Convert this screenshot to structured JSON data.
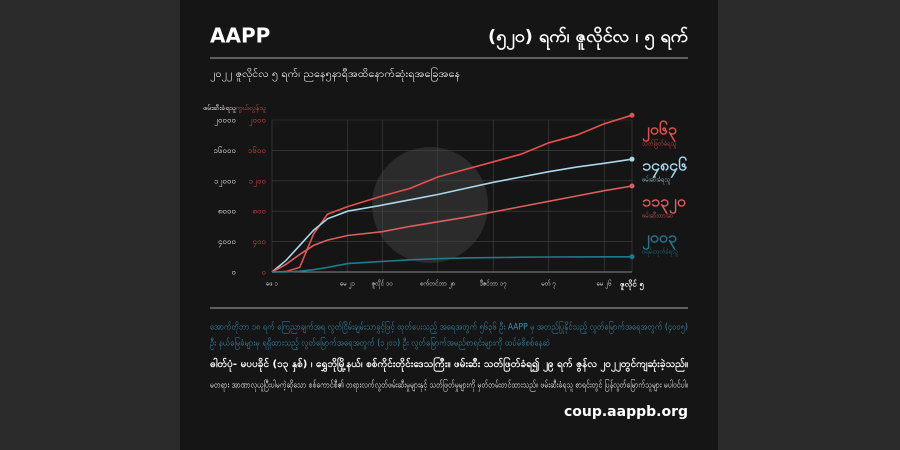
{
  "header": {
    "brand": "AAPP",
    "date": "(၅၂၀) ရက်၊ ဇူလိုင်လ ၊ ၅ ရက်",
    "subtitle": "၂၀၂၂ ဇူလိုင်လ ၅ ရက်၊ ညနေ၅နာရီအထိနောက်ဆုံးရအခြေအနေ"
  },
  "chart_data": {
    "type": "line",
    "y_label": "ဖမ်းဆီးခံရသူ",
    "y2_label": "ကွယ်လွန်သူ",
    "x": [
      0,
      20,
      40,
      60,
      80,
      109,
      159,
      199,
      239,
      279,
      319,
      359,
      399,
      439,
      479,
      519
    ],
    "xlim": [
      0,
      519
    ],
    "xticks": [
      {
        "value": 0,
        "label": "ဖေ ၁"
      },
      {
        "value": 109,
        "label": "မေ ၂၁"
      },
      {
        "value": 159,
        "label": "ဇူလိုင် ၁၀"
      },
      {
        "value": 239,
        "label": "စက်တင်ဘာ ၂၈"
      },
      {
        "value": 319,
        "label": "ဒီဇင်ဘာ ၁၇"
      },
      {
        "value": 399,
        "label": "မတ် ၇"
      },
      {
        "value": 479,
        "label": "မေ ၂၆"
      },
      {
        "value": 519,
        "label": "ဇူလိုင် ၅"
      }
    ],
    "ylim": [
      0,
      20000
    ],
    "yticks": [
      {
        "value": 0,
        "label": "၀"
      },
      {
        "value": 4000,
        "label": "၄၀၀၀"
      },
      {
        "value": 8000,
        "label": "၈၀၀၀"
      },
      {
        "value": 12000,
        "label": "၁၂၀၀၀"
      },
      {
        "value": 16000,
        "label": "၁၆၀၀၀"
      },
      {
        "value": 20000,
        "label": "၂၀၀၀၀"
      }
    ],
    "y2lim": [
      0,
      2000
    ],
    "y2ticks": [
      {
        "value": 0,
        "label": "၀"
      },
      {
        "value": 400,
        "label": "၄၀၀"
      },
      {
        "value": 800,
        "label": "၈၀၀"
      },
      {
        "value": 1200,
        "label": "၁၂၀၀"
      },
      {
        "value": 1600,
        "label": "၁၆၀၀"
      },
      {
        "value": 2000,
        "label": "၂၀၀၀"
      }
    ],
    "grid": true,
    "series": [
      {
        "name": "သတ်ဖြတ်ခံရသူ",
        "color": "#e8504c",
        "axis": "y2",
        "values": [
          0,
          5,
          60,
          500,
          760,
          860,
          1000,
          1100,
          1250,
          1350,
          1450,
          1550,
          1700,
          1800,
          1950,
          2063
        ],
        "value_labels": [
          null,
          null,
          null,
          null,
          null,
          null,
          null,
          null,
          null,
          null,
          null,
          null,
          null,
          null,
          null,
          "၂၀၆၃"
        ]
      },
      {
        "name": "ဖမ်းဆီးခံရသူ",
        "color": "#a8d8ea",
        "values": [
          0,
          1500,
          3500,
          5500,
          7000,
          8000,
          8800,
          9500,
          10200,
          11000,
          11800,
          12500,
          13200,
          13800,
          14300,
          14846
        ],
        "value_labels": [
          null,
          null,
          null,
          null,
          null,
          null,
          null,
          null,
          null,
          null,
          null,
          null,
          null,
          null,
          null,
          "၁၄၈၄၆"
        ]
      },
      {
        "name": "ဖမ်းဆီးထားဆဲ",
        "color": "#d9605c",
        "values": [
          0,
          1000,
          2300,
          3500,
          4200,
          4800,
          5300,
          6000,
          6600,
          7200,
          7900,
          8600,
          9300,
          10000,
          10700,
          11320
        ],
        "value_labels": [
          null,
          null,
          null,
          null,
          null,
          null,
          null,
          null,
          null,
          null,
          null,
          null,
          null,
          null,
          null,
          "၁၁၃၂၀"
        ]
      },
      {
        "name": "ဝရမ်းထုတ်ခံရသူ",
        "color": "#1f7a8c",
        "values": [
          0,
          0,
          100,
          300,
          600,
          1100,
          1400,
          1600,
          1750,
          1850,
          1900,
          1950,
          1980,
          1990,
          2000,
          2003
        ],
        "value_labels": [
          null,
          null,
          null,
          null,
          null,
          null,
          null,
          null,
          null,
          null,
          null,
          null,
          null,
          null,
          null,
          "၂၀၀၃"
        ]
      }
    ]
  },
  "footer": {
    "note_1": "အောက်တိုဘာ ၁၈ ရက် ကြေညာချက်အရ လွတ်ငြိမ်းချမ်းသာခွင့်ဖြင့် ထုတ်ပေးသည့် အရေအတွက် ၅၆၃၆ ဦး AAPP မှ အတည်ပြုနိုင်သည့် လွတ်မြောက်အရေအတွက် (၄၀၀၅)",
    "note_2": "ဦး နယ်မြေခံများမှ ရရှိထားသည့် လွတ်မြောက်အရေအတွက် (၁၂၀၁) ဦး လွတ်မြောက်အမည်စာရင်းများကို ထပ်မံစိစစ်နေဆဲ",
    "caption": "ဓါတ်ပုံ- မပပခိုင် (၁၃ နှစ်) ၊ ရွှေဘိုမြို့နယ်၊ စစ်ကိုင်းတိုင်းဒေသကြီး။ ဖမ်းဆီး သတ်ဖြတ်ခံရ၍ ၂၉ ရက် ဇွန်လ ၂၀၂၂တွင်ကျဆုံးခဲ့သည်။",
    "statement": "မတရား အာဏာလုယူပြီးပါမကဲ့ဆိုသော စစ်ကောင်စီ၏ တရားလက်လွတ်ဖမ်းဆီးမှုများနှင့် သတ်ဖြတ်မှုများကို မှတ်တမ်းတင်ထားသည်။ ဖမ်းဆီးခံရသူ စာရင်းတွင် ပြန်လွတ်မြောက်သူများ မပါဝင်ပါ။",
    "url": "coup.aappb.org"
  }
}
